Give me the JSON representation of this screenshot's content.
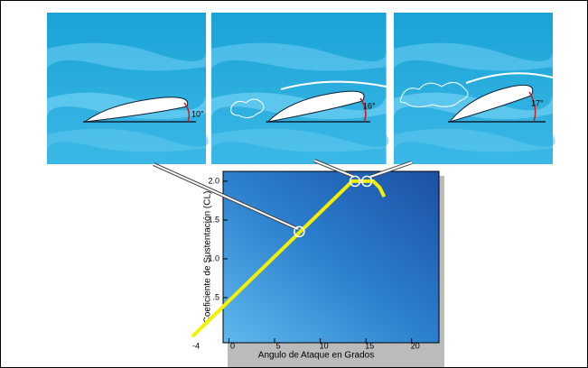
{
  "chart_data": {
    "type": "line",
    "annotations": [
      "10°",
      "16°",
      "17°"
    ],
    "xlabel": "Angulo de Ataque en Grados",
    "ylabel": "Coeficiente de Sustentación (CL)",
    "x": [
      -4,
      13.5,
      15.8,
      16.5,
      17
    ],
    "values": [
      0,
      2.0,
      2.0,
      1.92,
      1.8
    ],
    "color": "#f4f000",
    "highlights": {
      "x": [
        7.7,
        13.8,
        15.1
      ],
      "y": [
        1.35,
        2.0,
        2.0
      ]
    },
    "xlim": [
      -4,
      22.5
    ],
    "xticks": [
      -4,
      0,
      5,
      10,
      15,
      20
    ],
    "ylim": [
      0,
      2.15
    ],
    "yticks": [
      {
        "value": 0.5,
        "label": ".5"
      },
      {
        "value": 1.0,
        "label": "1.0"
      },
      {
        "value": 1.5,
        "label": "1.5"
      },
      {
        "value": 2.0,
        "label": "2.0"
      }
    ]
  }
}
